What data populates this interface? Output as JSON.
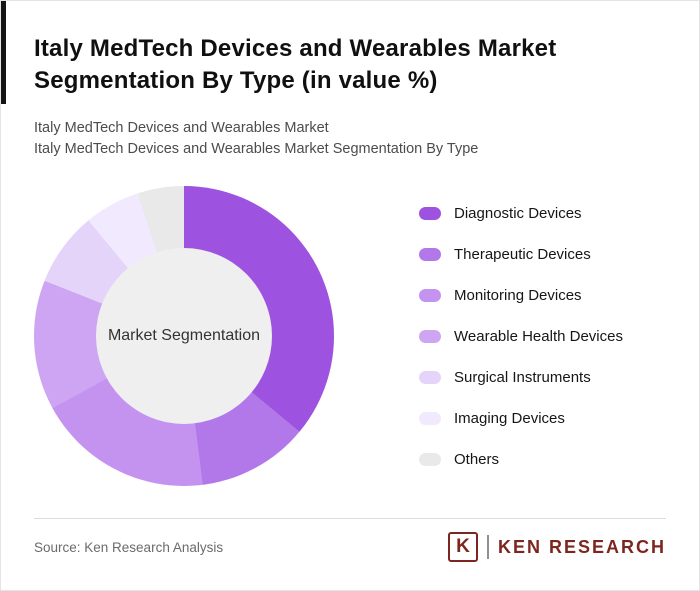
{
  "page": {
    "title": "Italy MedTech Devices and Wearables Market Segmentation By Type (in value %)",
    "subtitle_line1": "Italy MedTech Devices and Wearables Market",
    "subtitle_line2": "Italy MedTech Devices and Wearables Market Segmentation By Type",
    "source": "Source: Ken Research Analysis"
  },
  "logo": {
    "letter": "K",
    "text": "KEN RESEARCH",
    "color": "#7D261F"
  },
  "chart_data": {
    "type": "pie",
    "donut": true,
    "title": "Italy MedTech Devices and Wearables Market Segmentation By Type (in value %)",
    "center_label": "Market Segmentation",
    "center_color": "#EFEFEF",
    "legend_position": "right",
    "start_angle_deg": 0,
    "direction": "clockwise",
    "segments": [
      {
        "label": "Diagnostic Devices",
        "value": 36,
        "color": "#9D52E0"
      },
      {
        "label": "Therapeutic Devices",
        "value": 12,
        "color": "#B278EA"
      },
      {
        "label": "Monitoring Devices",
        "value": 19,
        "color": "#C493F0"
      },
      {
        "label": "Wearable Health Devices",
        "value": 14,
        "color": "#CDA5F3"
      },
      {
        "label": "Surgical Instruments",
        "value": 8,
        "color": "#E5D4FA"
      },
      {
        "label": "Imaging Devices",
        "value": 6,
        "color": "#F1E9FD"
      },
      {
        "label": "Others",
        "value": 5,
        "color": "#E9E9E9"
      }
    ]
  }
}
